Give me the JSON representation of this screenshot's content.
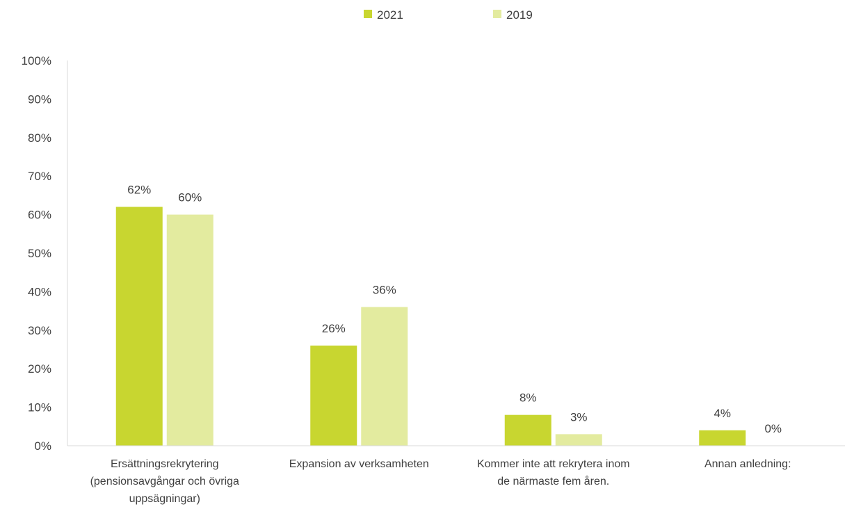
{
  "chart_data": {
    "type": "bar",
    "categories": [
      [
        "Ersättningsrekrytering",
        "(pensionsavgångar och övriga",
        "uppsägningar)"
      ],
      [
        "Expansion av verksamheten"
      ],
      [
        "Kommer inte att rekrytera inom",
        "de närmaste fem åren."
      ],
      [
        "Annan anledning:"
      ]
    ],
    "series": [
      {
        "name": "2021",
        "values": [
          62,
          26,
          8,
          4
        ],
        "labels": [
          "62%",
          "26%",
          "8%",
          "4%"
        ],
        "color": "#c8d630"
      },
      {
        "name": "2019",
        "values": [
          60,
          36,
          3,
          0
        ],
        "labels": [
          "60%",
          "36%",
          "3%",
          "0%"
        ],
        "color": "#e3eb9f"
      }
    ],
    "ylim": [
      0,
      100
    ],
    "yticks": [
      "0%",
      "10%",
      "20%",
      "30%",
      "40%",
      "50%",
      "60%",
      "70%",
      "80%",
      "90%",
      "100%"
    ],
    "grid": false,
    "legend_position": "top-center"
  }
}
